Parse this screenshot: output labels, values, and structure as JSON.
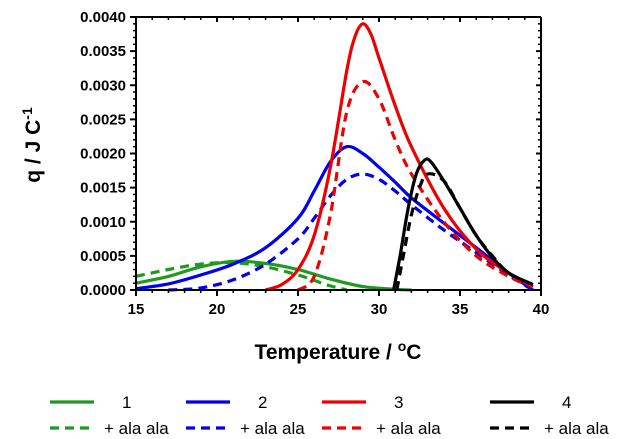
{
  "chart_data": {
    "type": "line",
    "xlabel": "Temperature / ",
    "xlabel_unit": "oC",
    "xlabel_sup": "o",
    "xlabel_tail": "C",
    "ylabel_main": "q / J C",
    "ylabel_sup": "-1",
    "xlim": [
      15,
      40
    ],
    "ylim": [
      0,
      0.004
    ],
    "x_ticks": [
      15,
      20,
      25,
      30,
      35,
      40
    ],
    "x_tick_labels": [
      "15",
      "20",
      "25",
      "30",
      "35",
      "40"
    ],
    "y_ticks": [
      0,
      0.0005,
      0.001,
      0.0015,
      0.002,
      0.0025,
      0.003,
      0.0035,
      0.004
    ],
    "y_tick_labels": [
      "0.0000",
      "0.0005",
      "0.0010",
      "0.0015",
      "0.0020",
      "0.0025",
      "0.0030",
      "0.0035",
      "0.0040"
    ],
    "grid": false,
    "legend_position": "bottom",
    "series": [
      {
        "name": "1",
        "color": "#1e9a1e",
        "dash": false,
        "x": [
          15,
          17,
          19,
          21,
          23,
          25,
          27,
          29,
          31,
          32
        ],
        "y": [
          0.0001,
          0.0002,
          0.00034,
          0.00042,
          0.00039,
          0.0003,
          0.00016,
          5e-05,
          1e-05,
          0
        ]
      },
      {
        "name": "+ ala ala",
        "color": "#1e9a1e",
        "dash": true,
        "x": [
          15,
          17,
          19,
          21,
          23,
          25,
          26,
          27,
          28
        ],
        "y": [
          0.0002,
          0.0003,
          0.00038,
          0.0004,
          0.00034,
          0.00022,
          0.00014,
          6e-05,
          0
        ]
      },
      {
        "name": "2",
        "color": "#0000ee",
        "dash": false,
        "x": [
          15,
          17,
          19,
          21,
          23,
          25,
          26,
          27,
          28,
          29,
          30,
          31,
          32,
          34,
          36,
          38,
          39.5
        ],
        "y": [
          2e-05,
          9e-05,
          0.00022,
          0.00038,
          0.00062,
          0.00105,
          0.00145,
          0.00188,
          0.0021,
          0.002,
          0.0018,
          0.00158,
          0.00135,
          0.00098,
          0.00062,
          0.00025,
          0
        ]
      },
      {
        "name": "+ ala ala",
        "color": "#0000ee",
        "dash": true,
        "x": [
          17,
          19,
          21,
          23,
          25,
          26,
          27,
          28,
          29,
          30,
          31,
          32,
          34,
          36,
          38,
          39.5
        ],
        "y": [
          0,
          3e-05,
          0.00015,
          0.00038,
          0.00075,
          0.00105,
          0.00138,
          0.00162,
          0.0017,
          0.00162,
          0.00145,
          0.00125,
          0.00088,
          0.00055,
          0.00022,
          0
        ]
      },
      {
        "name": "3",
        "color": "#ee0000",
        "dash": false,
        "x": [
          23,
          24,
          25,
          26,
          27,
          28,
          28.5,
          29,
          29.5,
          30,
          31,
          32,
          34,
          36,
          38,
          39.5
        ],
        "y": [
          0,
          8e-05,
          0.0003,
          0.0008,
          0.0018,
          0.0032,
          0.0037,
          0.0039,
          0.00375,
          0.0034,
          0.0027,
          0.0021,
          0.0012,
          0.0006,
          0.00025,
          5e-05
        ]
      },
      {
        "name": "+ ala ala",
        "color": "#ee0000",
        "dash": true,
        "x": [
          25,
          26,
          27,
          28,
          29,
          30,
          31,
          32,
          34,
          36,
          38,
          39.5
        ],
        "y": [
          0,
          0.0002,
          0.0011,
          0.0026,
          0.00305,
          0.0028,
          0.0022,
          0.0017,
          0.001,
          0.0005,
          0.0002,
          5e-05
        ]
      },
      {
        "name": "4",
        "color": "#000000",
        "dash": false,
        "x": [
          30.9,
          31.3,
          31.8,
          32.3,
          32.8,
          33.2,
          34,
          35,
          36,
          37,
          38,
          39.5
        ],
        "y": [
          0,
          0.0005,
          0.0012,
          0.0017,
          0.0019,
          0.00188,
          0.0016,
          0.0012,
          0.0008,
          0.00048,
          0.00025,
          8e-05
        ]
      },
      {
        "name": "+ ala ala",
        "color": "#000000",
        "dash": true,
        "x": [
          31.1,
          31.5,
          32,
          32.5,
          33,
          34,
          35,
          36,
          37,
          38,
          39.5
        ],
        "y": [
          0,
          0.0005,
          0.0011,
          0.0015,
          0.0017,
          0.0016,
          0.0012,
          0.0008,
          0.0005,
          0.00025,
          8e-05
        ]
      }
    ]
  }
}
